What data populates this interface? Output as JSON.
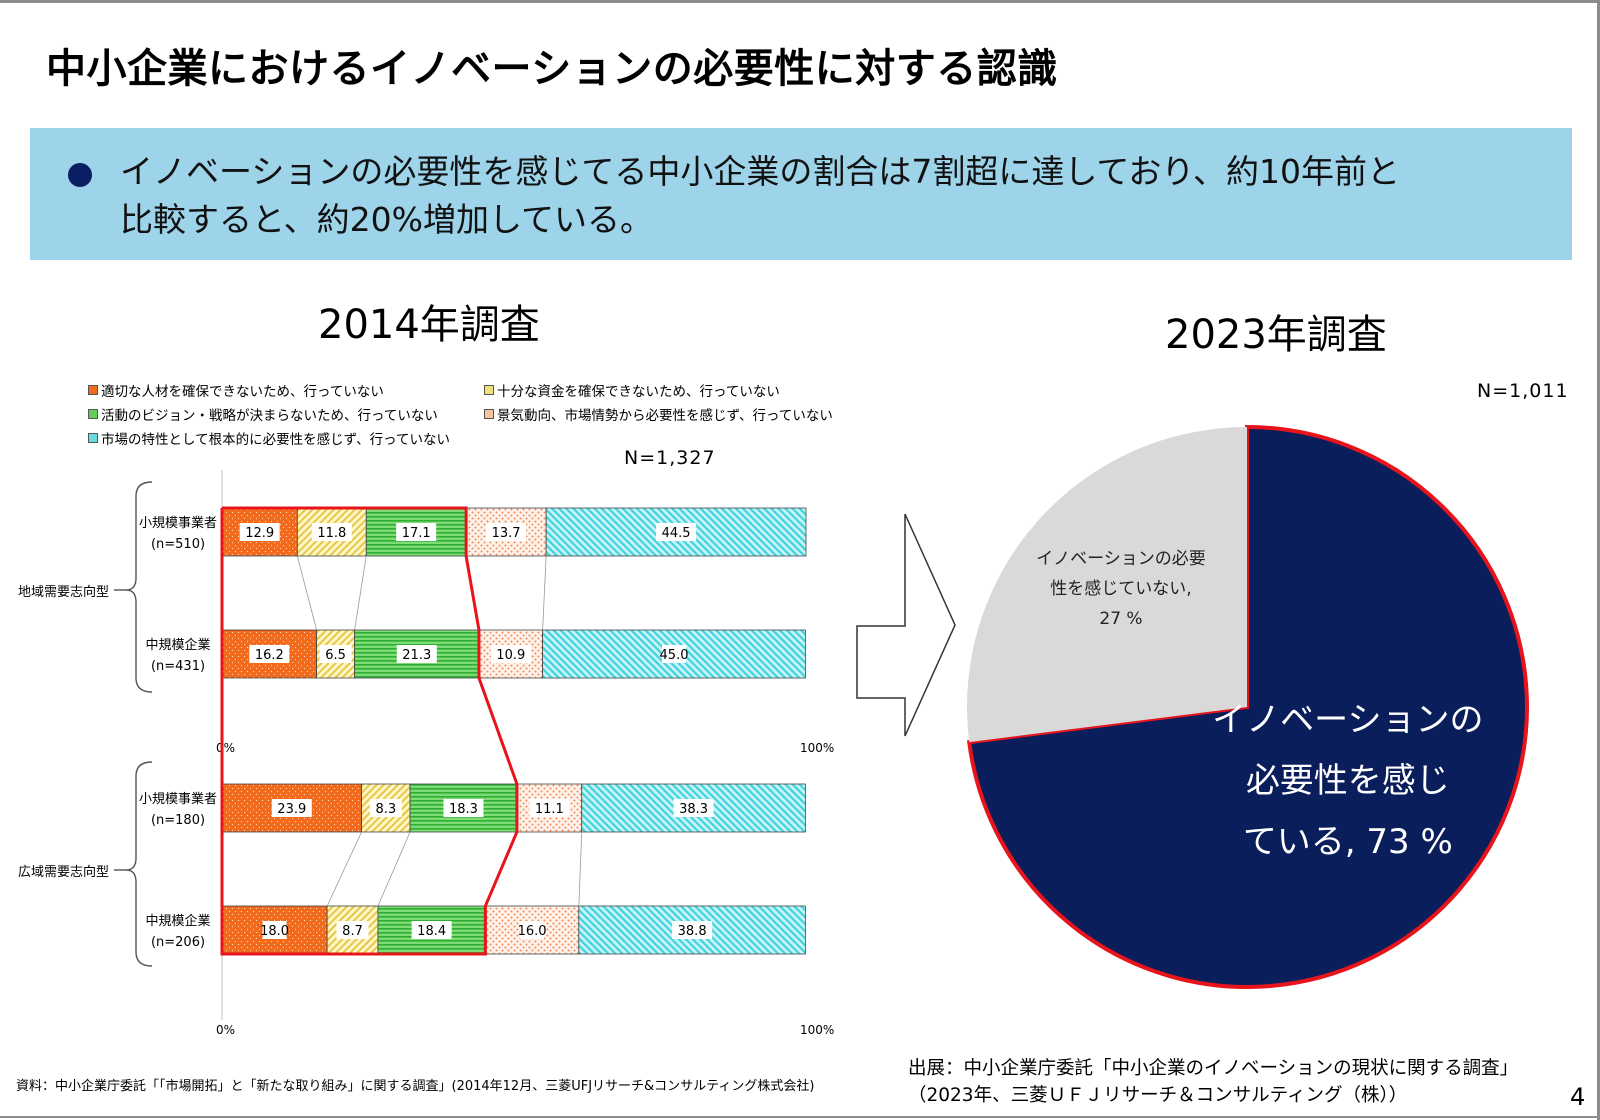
{
  "title": "中小企業におけるイノベーションの必要性に対する認識",
  "banner": {
    "line1": "イノベーションの必要性を感じてる中小企業の割合は7割超に達しており、約10年前と",
    "line2": "比較すると、約20%増加している。"
  },
  "survey_2014": {
    "title": "2014年調査",
    "n": "N=1,327",
    "legend": [
      "適切な人材を確保できないため、行っていない",
      "十分な資金を確保できないため、行っていない",
      "活動のビジョン・戦略が決まらないため、行っていない",
      "景気動向、市場情勢から必要性を感じず、行っていない",
      "市場の特性として根本的に必要性を感じず、行っていない"
    ],
    "groups": [
      "地域需要志向型",
      "広域需要志向型"
    ],
    "row_labels": [
      {
        "name": "小規模事業者",
        "n": "(n=510)"
      },
      {
        "name": "中規模企業",
        "n": "(n=431)"
      },
      {
        "name": "小規模事業者",
        "n": "(n=180)"
      },
      {
        "name": "中規模企業",
        "n": "(n=206)"
      }
    ],
    "axis_min": "0%",
    "axis_max": "100%",
    "source": "資料：中小企業庁委託「「市場開拓」と「新たな取り組み」に関する調査」(2014年12月、三菱UFJリサーチ&コンサルティング株式会社)"
  },
  "survey_2023": {
    "title": "2023年調査",
    "n": "N=1,011",
    "slices": [
      {
        "label_lines": [
          "イノベーションの",
          "必要性を感じ",
          "ている, 73 %"
        ],
        "value": 73
      },
      {
        "label_lines": [
          "イノベーションの必要",
          "性を感じていない,",
          "27 %"
        ],
        "value": 27
      }
    ],
    "source_line1": "出展：中小企業庁委託「中小企業のイノベーションの現状に関する調査」",
    "source_line2": "（2023年、三菱ＵＦＪリサーチ＆コンサルティング（株））"
  },
  "page_number": "4",
  "colors": {
    "banner_bg": "#9dd4ea",
    "bullet": "#0a1e63",
    "orange": "#f26a1b",
    "yellow": "#f3df7a",
    "green": "#5fcf5a",
    "peach": "#f6c29f",
    "cyan": "#66dbe4",
    "pie_navy": "#0a1e5c",
    "pie_gray": "#d9d9d9",
    "highlight_red": "#e8141b"
  },
  "chart_data": [
    {
      "type": "bar",
      "orientation": "horizontal-stacked-100",
      "title": "2014年調査",
      "categories": [
        "地域需要志向型 小規模事業者(n=510)",
        "地域需要志向型 中規模企業(n=431)",
        "広域需要志向型 小規模事業者(n=180)",
        "広域需要志向型 中規模企業(n=206)"
      ],
      "series": [
        {
          "name": "適切な人材を確保できないため、行っていない",
          "values": [
            12.9,
            16.2,
            23.9,
            18.0
          ]
        },
        {
          "name": "十分な資金を確保できないため、行っていない",
          "values": [
            11.8,
            6.5,
            8.3,
            8.7
          ]
        },
        {
          "name": "活動のビジョン・戦略が決まらないため、行っていない",
          "values": [
            17.1,
            21.3,
            18.3,
            18.4
          ]
        },
        {
          "name": "景気動向、市場情勢から必要性を感じず、行っていない",
          "values": [
            13.7,
            10.9,
            11.1,
            16.0
          ]
        },
        {
          "name": "市場の特性として根本的に必要性を感じず、行っていない",
          "values": [
            44.5,
            45.0,
            38.3,
            38.8
          ]
        }
      ],
      "xlim": [
        0,
        100
      ]
    },
    {
      "type": "pie",
      "title": "2023年調査",
      "labels": [
        "イノベーションの必要性を感じている",
        "イノベーションの必要性を感じていない"
      ],
      "values": [
        73,
        27
      ]
    }
  ]
}
